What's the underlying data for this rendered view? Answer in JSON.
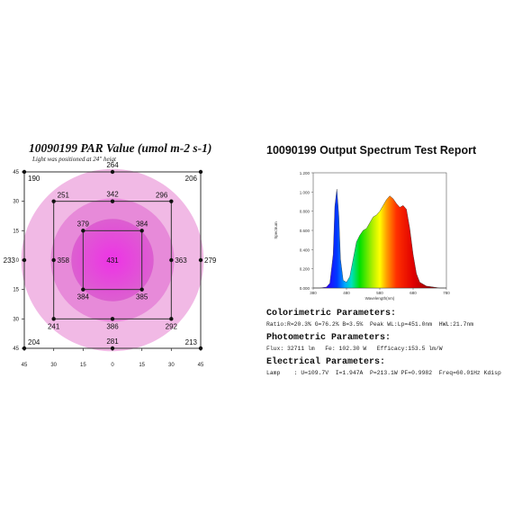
{
  "par_chart": {
    "title": "10090199 PAR Value (umol m-2 s-1)",
    "subtitle": "Light was positioned at 24\" heigt"
  },
  "spectrum_chart": {
    "title": "10090199 Output Spectrum Test Report"
  },
  "report": {
    "colorimetric_heading": "Colorimetric Parameters:",
    "colorimetric_line": "Ratio:R=20.3% G=76.2% B=3.5%  Peak WL:Lp=451.0nm  HWL:21.7nm",
    "photometric_heading": "Photometric Parameters:",
    "photometric_line": "Flux: 32711 lm   Fe: 102.30 W   Efficacy:153.5 lm/W",
    "electrical_heading": "Electrical Parameters:",
    "electrical_line": "Lamp    : U=109.7V  I=1.947A  P=213.1W PF=0.9982  Freq=60.01Hz Kdisp"
  },
  "chart_data": [
    {
      "type": "heatmap",
      "title": "10090199 PAR Value (umol m-2 s-1)",
      "subtitle": "Light was positioned at 24\" heigt",
      "x_ticks": [
        "45",
        "30",
        "15",
        "0",
        "15",
        "30",
        "45"
      ],
      "y_ticks": [
        "45",
        "30",
        "15",
        "0",
        "15",
        "30",
        "45"
      ],
      "x_tick_values": [
        -45,
        -30,
        -15,
        0,
        15,
        30,
        45
      ],
      "y_tick_values": [
        45,
        30,
        15,
        0,
        -15,
        -30,
        -45
      ],
      "xlim": [
        -45,
        45
      ],
      "ylim": [
        -45,
        45
      ],
      "colors": {
        "outer": "#f1b9e5",
        "mid": "#e78ad9",
        "inner": "#dc5fd0",
        "center": "#ee33e6",
        "grid": "#333333",
        "point": "#111111"
      },
      "squares": [
        30,
        15
      ],
      "outer_frame": 45,
      "points": [
        {
          "x": -45,
          "y": 45,
          "value": 190,
          "label_pos": "br"
        },
        {
          "x": 0,
          "y": 45,
          "value": 264,
          "label_pos": "t"
        },
        {
          "x": 45,
          "y": 45,
          "value": 206,
          "label_pos": "bl"
        },
        {
          "x": -30,
          "y": 30,
          "value": 251,
          "label_pos": "tr"
        },
        {
          "x": 0,
          "y": 30,
          "value": 342,
          "label_pos": "t"
        },
        {
          "x": 30,
          "y": 30,
          "value": 296,
          "label_pos": "tl"
        },
        {
          "x": -15,
          "y": 15,
          "value": 379,
          "label_pos": "t"
        },
        {
          "x": 15,
          "y": 15,
          "value": 384,
          "label_pos": "t"
        },
        {
          "x": -45,
          "y": 0,
          "value": 233,
          "label_pos": "r"
        },
        {
          "x": -30,
          "y": 0,
          "value": 358,
          "label_pos": "r"
        },
        {
          "x": 0,
          "y": 0,
          "value": 431,
          "label_pos": "c"
        },
        {
          "x": 30,
          "y": 0,
          "value": 363,
          "label_pos": "r"
        },
        {
          "x": 45,
          "y": 0,
          "value": 279,
          "label_pos": "r"
        },
        {
          "x": -15,
          "y": -15,
          "value": 384,
          "label_pos": "b"
        },
        {
          "x": 15,
          "y": -15,
          "value": 385,
          "label_pos": "b"
        },
        {
          "x": -30,
          "y": -30,
          "value": 241,
          "label_pos": "b"
        },
        {
          "x": 0,
          "y": -30,
          "value": 386,
          "label_pos": "b"
        },
        {
          "x": 30,
          "y": -30,
          "value": 292,
          "label_pos": "b"
        },
        {
          "x": -45,
          "y": -45,
          "value": 204,
          "label_pos": "tr"
        },
        {
          "x": 0,
          "y": -45,
          "value": 281,
          "label_pos": "t"
        },
        {
          "x": 45,
          "y": -45,
          "value": 213,
          "label_pos": "tl"
        }
      ]
    },
    {
      "type": "area",
      "title": "10090199 Output Spectrum Test Report",
      "xlabel": "Wavelength(nm)",
      "ylabel": "Spectrum",
      "xlim": [
        380,
        780
      ],
      "ylim": [
        0,
        1.2
      ],
      "x_ticks": [
        "380",
        "480",
        "580",
        "680",
        "780"
      ],
      "x_tick_values": [
        380,
        480,
        580,
        680,
        780
      ],
      "y_ticks": [
        "0.000",
        "0.200",
        "0.400",
        "0.600",
        "0.800",
        "1.000",
        "1.200"
      ],
      "y_tick_values": [
        0,
        0.2,
        0.4,
        0.6,
        0.8,
        1.0,
        1.2
      ],
      "fill": "visible spectrum gradient",
      "x": [
        380,
        400,
        420,
        430,
        440,
        445,
        451,
        457,
        462,
        470,
        480,
        490,
        500,
        510,
        520,
        530,
        540,
        550,
        560,
        570,
        580,
        590,
        600,
        610,
        620,
        630,
        640,
        650,
        660,
        670,
        680,
        690,
        700,
        720,
        740,
        760,
        780
      ],
      "values": [
        0.0,
        0.0,
        0.01,
        0.05,
        0.35,
        0.85,
        1.03,
        0.75,
        0.3,
        0.08,
        0.06,
        0.12,
        0.3,
        0.48,
        0.55,
        0.6,
        0.62,
        0.68,
        0.74,
        0.76,
        0.8,
        0.86,
        0.92,
        0.96,
        0.93,
        0.88,
        0.84,
        0.86,
        0.82,
        0.62,
        0.35,
        0.15,
        0.06,
        0.02,
        0.01,
        0.0,
        0.0
      ]
    }
  ]
}
